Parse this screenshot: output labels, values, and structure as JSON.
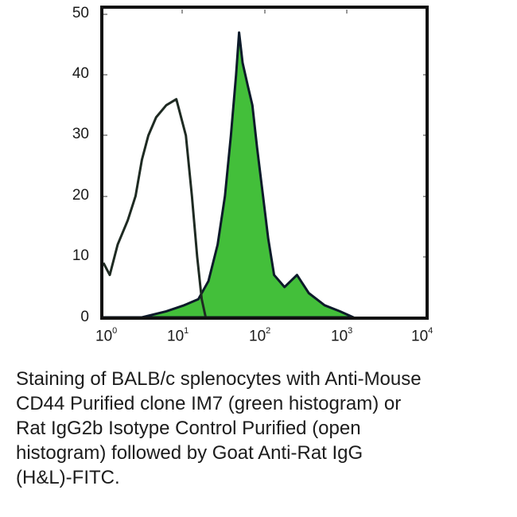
{
  "chart_data": {
    "type": "area",
    "title": "",
    "xlabel": "",
    "ylabel": "",
    "xscale": "log",
    "xlim": [
      1,
      10000
    ],
    "ylim": [
      0,
      50
    ],
    "grid": false,
    "legend": null,
    "x_ticks": [
      "10^0",
      "10^1",
      "10^2",
      "10^3",
      "10^4"
    ],
    "y_ticks": [
      0,
      10,
      20,
      30,
      40,
      50
    ],
    "series": [
      {
        "name": "Rat IgG2b Isotype Control Purified (open histogram)",
        "style": "open",
        "color": "#1e2a22",
        "x": [
          1.0,
          1.2,
          1.5,
          2.0,
          2.5,
          3.0,
          3.6,
          4.5,
          6.0,
          8.0,
          10.5,
          12.5,
          14.5,
          16.5,
          18.5
        ],
        "y": [
          9,
          7,
          12,
          16,
          20,
          26,
          30,
          33,
          35,
          36,
          30,
          20,
          10,
          3,
          0
        ]
      },
      {
        "name": "Anti-Mouse CD44 Purified clone IM7 (green histogram)",
        "style": "filled",
        "color": "#43bf3a",
        "edge_color": "#0d1a2a",
        "x": [
          1.0,
          3.0,
          6.0,
          10.0,
          15.0,
          20.0,
          26.0,
          32.0,
          38.0,
          44.0,
          48.0,
          53.0,
          62.0,
          70.0,
          80.0,
          95.0,
          110.0,
          130.0,
          175.0,
          250.0,
          350.0,
          550.0,
          850.0,
          1250.0
        ],
        "y": [
          0,
          0,
          1,
          2,
          3,
          6,
          12,
          20,
          30,
          40,
          47,
          42,
          38,
          35,
          28,
          20,
          13,
          7,
          5,
          7,
          4,
          2,
          1,
          0
        ]
      }
    ]
  },
  "axes": {
    "y_labels": [
      "50",
      "40",
      "30",
      "20",
      "10",
      "0"
    ],
    "x_labels": [
      {
        "base": "10",
        "exp": "0"
      },
      {
        "base": "10",
        "exp": "1"
      },
      {
        "base": "10",
        "exp": "2"
      },
      {
        "base": "10",
        "exp": "3"
      },
      {
        "base": "10",
        "exp": "4"
      }
    ]
  },
  "caption": {
    "lines": [
      "Staining of BALB/c splenocytes with Anti-Mouse",
      "CD44 Purified clone IM7 (green histogram) or",
      "Rat IgG2b Isotype Control Purified (open",
      "histogram) followed by Goat Anti-Rat IgG",
      "(H&L)-FITC."
    ]
  },
  "colors": {
    "fill_green": "#43bf3a",
    "outline_dark": "#0d1a2a",
    "isotype_line": "#1e2a22",
    "frame": "#111111"
  }
}
